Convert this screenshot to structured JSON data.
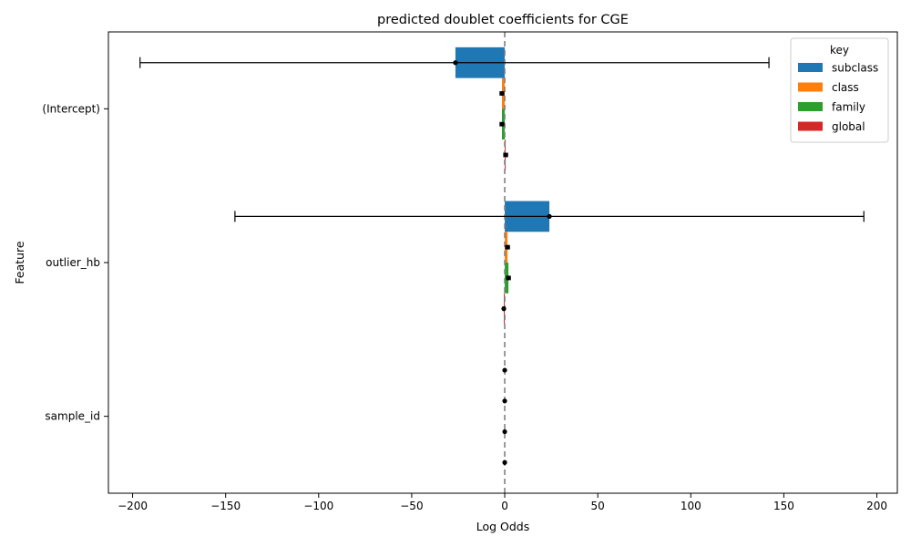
{
  "chart_data": {
    "type": "bar",
    "orientation": "horizontal",
    "title": "predicted doublet coefficients for CGE",
    "xlabel": "Log Odds",
    "ylabel": "Feature",
    "categories": [
      "(Intercept)",
      "outlier_hb",
      "sample_id"
    ],
    "xlim": [
      -213,
      211
    ],
    "xticks": [
      -200,
      -150,
      -100,
      -50,
      0,
      50,
      100,
      150,
      200
    ],
    "xtick_labels": [
      "−200",
      "−150",
      "−100",
      "−50",
      "0",
      "50",
      "100",
      "150",
      "200"
    ],
    "reference_line": {
      "x": 0,
      "style": "dashed",
      "color": "#808080"
    },
    "legend": {
      "title": "key",
      "placement": "top-right"
    },
    "series": [
      {
        "name": "subclass",
        "color": "#1f77b4",
        "values": [
          -26.5,
          24.0,
          0.0
        ],
        "ci_low": [
          -196.0,
          -145.0,
          0.0
        ],
        "ci_high": [
          142.0,
          193.0,
          0.0
        ]
      },
      {
        "name": "class",
        "color": "#ff7f0e",
        "values": [
          -1.5,
          1.5,
          0.0
        ],
        "ci_low": [
          -2.5,
          0.5,
          0.0
        ],
        "ci_high": [
          -0.5,
          2.5,
          0.0
        ]
      },
      {
        "name": "family",
        "color": "#2ca02c",
        "values": [
          -1.5,
          2.0,
          0.0
        ],
        "ci_low": [
          -2.5,
          1.0,
          0.0
        ],
        "ci_high": [
          -0.5,
          3.0,
          0.0
        ]
      },
      {
        "name": "global",
        "color": "#d62728",
        "values": [
          0.5,
          -0.5,
          0.0
        ],
        "ci_low": [
          -0.5,
          -1.0,
          -0.3
        ],
        "ci_high": [
          1.5,
          0.0,
          0.3
        ]
      }
    ]
  }
}
